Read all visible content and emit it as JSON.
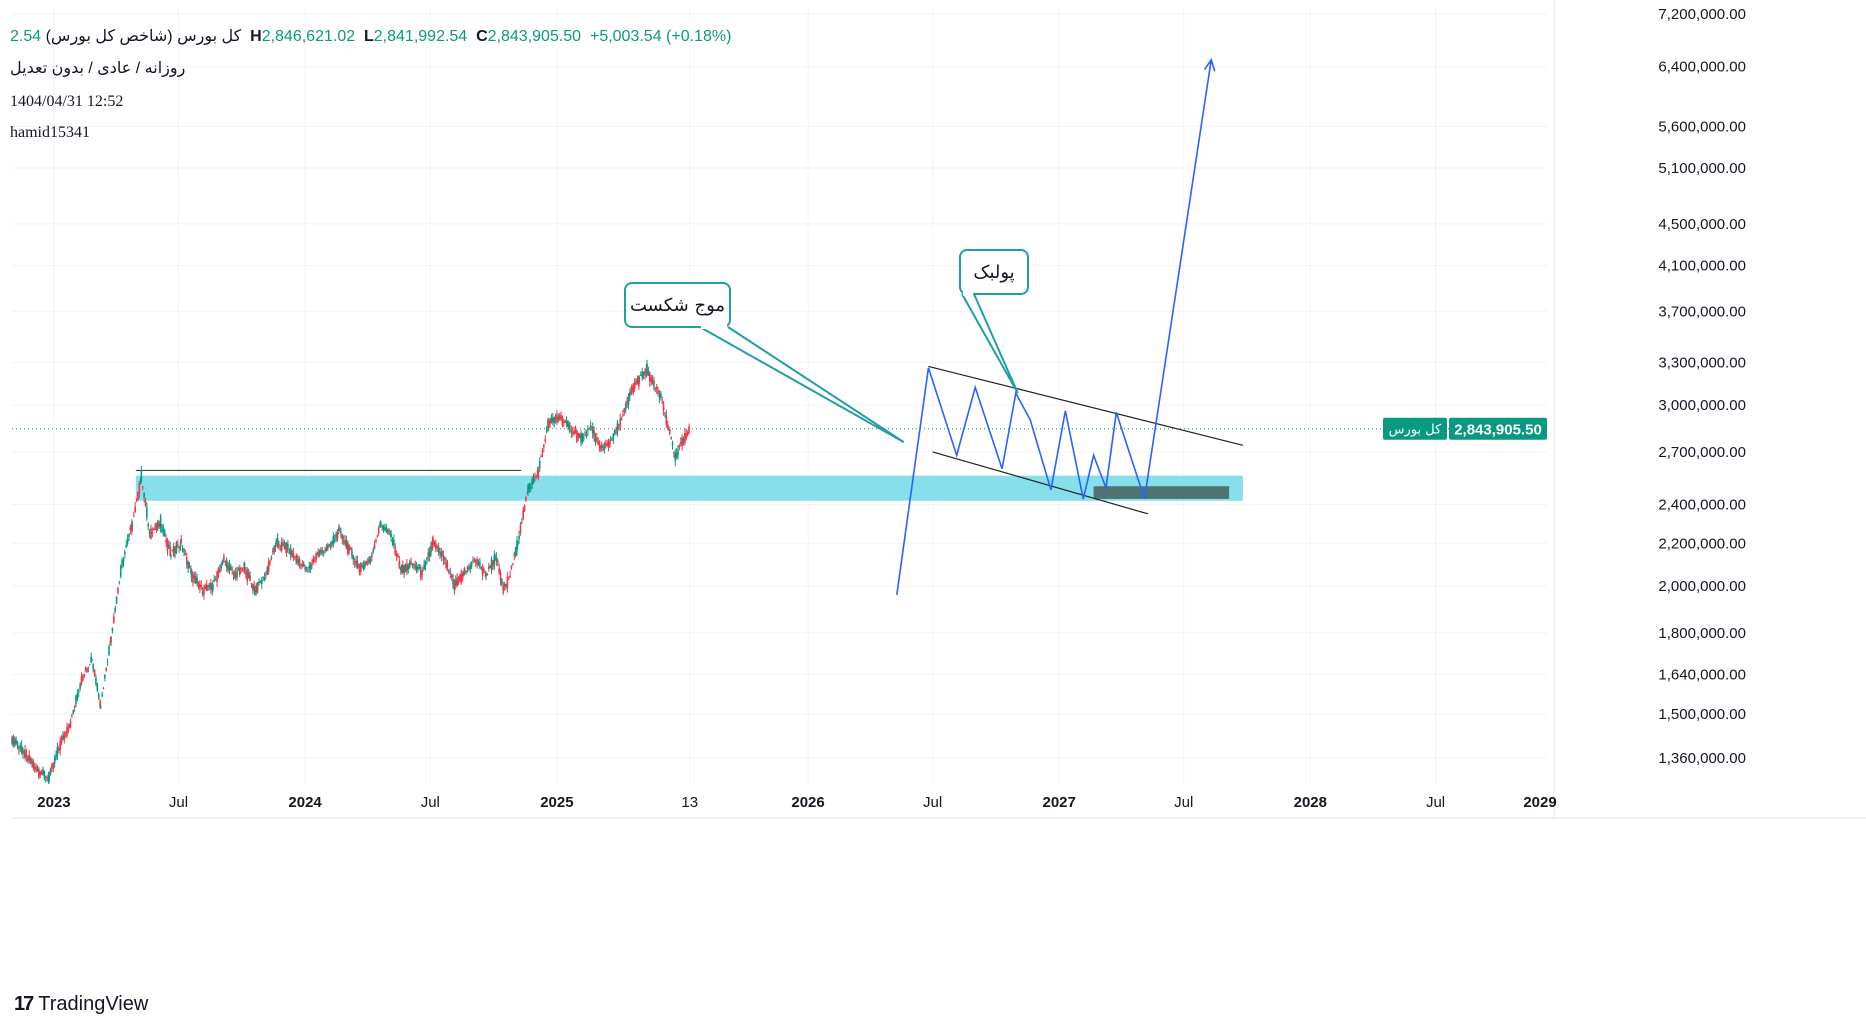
{
  "header": {
    "symbol": "کل بورس (شاخص کل بورس)",
    "open_partial": "2.54",
    "high_label": "H",
    "high": "2,846,621.02",
    "low_label": "L",
    "low": "2,841,992.54",
    "close_label": "C",
    "close": "2,843,905.50",
    "change": "+5,003.54 (+0.18%)",
    "interval": "روزانه / عادی / بدون تعدیل",
    "datetime": "1404/04/31 12:52",
    "author": "hamid15341"
  },
  "brand": {
    "name": "TradingView"
  },
  "price_tag": {
    "label": "کل بورس",
    "value": "2,843,905.50",
    "price": 2843905.5,
    "color": "#089981"
  },
  "annotations": {
    "callout_breakout": "موج شکست",
    "callout_pullback": "پولبک"
  },
  "colors": {
    "up": "#089981",
    "down": "#f23645",
    "projection": "#2962ff",
    "zone": "#7fdde9",
    "callout_border": "#1f9ea7",
    "target_box": "#4f7373"
  },
  "chart_data": {
    "type": "line",
    "scale": "log",
    "ylim": [
      1280000,
      7300000
    ],
    "xlim": [
      "2022-11-01",
      "2028-12-10"
    ],
    "y_ticks": [
      {
        "value": 7200000,
        "label": "7,200,000.00"
      },
      {
        "value": 6400000,
        "label": "6,400,000.00"
      },
      {
        "value": 5600000,
        "label": "5,600,000.00"
      },
      {
        "value": 5100000,
        "label": "5,100,000.00"
      },
      {
        "value": 4500000,
        "label": "4,500,000.00"
      },
      {
        "value": 4100000,
        "label": "4,100,000.00"
      },
      {
        "value": 3700000,
        "label": "3,700,000.00"
      },
      {
        "value": 3300000,
        "label": "3,300,000.00"
      },
      {
        "value": 3000000,
        "label": "3,000,000.00"
      },
      {
        "value": 2700000,
        "label": "2,700,000.00"
      },
      {
        "value": 2400000,
        "label": "2,400,000.00"
      },
      {
        "value": 2200000,
        "label": "2,200,000.00"
      },
      {
        "value": 2000000,
        "label": "2,000,000.00"
      },
      {
        "value": 1800000,
        "label": "1,800,000.00"
      },
      {
        "value": 1640000,
        "label": "1,640,000.00"
      },
      {
        "value": 1500000,
        "label": "1,500,000.00"
      },
      {
        "value": 1360000,
        "label": "1,360,000.00"
      }
    ],
    "x_ticks": [
      {
        "date": "2023-01-01",
        "label": "2023",
        "bold": true
      },
      {
        "date": "2023-07-01",
        "label": "Jul",
        "bold": false
      },
      {
        "date": "2024-01-01",
        "label": "2024",
        "bold": true
      },
      {
        "date": "2024-07-01",
        "label": "Jul",
        "bold": false
      },
      {
        "date": "2025-01-01",
        "label": "2025",
        "bold": true
      },
      {
        "date": "2025-07-13",
        "label": "13",
        "bold": false
      },
      {
        "date": "2026-01-01",
        "label": "2026",
        "bold": true
      },
      {
        "date": "2026-07-01",
        "label": "Jul",
        "bold": false
      },
      {
        "date": "2027-01-01",
        "label": "2027",
        "bold": true
      },
      {
        "date": "2027-07-01",
        "label": "Jul",
        "bold": false
      },
      {
        "date": "2028-01-01",
        "label": "2028",
        "bold": true
      },
      {
        "date": "2028-07-01",
        "label": "Jul",
        "bold": false
      },
      {
        "date": "2029-01-01",
        "label": "2029",
        "bold": true
      }
    ],
    "price_series": [
      [
        "2022-11-01",
        1420000
      ],
      [
        "2022-11-20",
        1370000
      ],
      [
        "2022-12-10",
        1320000
      ],
      [
        "2022-12-25",
        1300000
      ],
      [
        "2023-01-10",
        1400000
      ],
      [
        "2023-01-25",
        1470000
      ],
      [
        "2023-02-10",
        1620000
      ],
      [
        "2023-02-25",
        1700000
      ],
      [
        "2023-03-10",
        1530000
      ],
      [
        "2023-03-25",
        1780000
      ],
      [
        "2023-04-10",
        2100000
      ],
      [
        "2023-04-25",
        2300000
      ],
      [
        "2023-05-08",
        2550000
      ],
      [
        "2023-05-20",
        2250000
      ],
      [
        "2023-06-05",
        2300000
      ],
      [
        "2023-06-20",
        2150000
      ],
      [
        "2023-07-05",
        2200000
      ],
      [
        "2023-07-20",
        2050000
      ],
      [
        "2023-08-05",
        1980000
      ],
      [
        "2023-08-20",
        2000000
      ],
      [
        "2023-09-05",
        2120000
      ],
      [
        "2023-09-20",
        2050000
      ],
      [
        "2023-10-05",
        2080000
      ],
      [
        "2023-10-20",
        1980000
      ],
      [
        "2023-11-05",
        2050000
      ],
      [
        "2023-11-20",
        2200000
      ],
      [
        "2023-12-05",
        2180000
      ],
      [
        "2023-12-20",
        2120000
      ],
      [
        "2024-01-05",
        2070000
      ],
      [
        "2024-01-20",
        2150000
      ],
      [
        "2024-02-05",
        2180000
      ],
      [
        "2024-02-20",
        2260000
      ],
      [
        "2024-03-05",
        2170000
      ],
      [
        "2024-03-20",
        2080000
      ],
      [
        "2024-04-05",
        2120000
      ],
      [
        "2024-04-20",
        2300000
      ],
      [
        "2024-05-05",
        2240000
      ],
      [
        "2024-05-20",
        2070000
      ],
      [
        "2024-06-05",
        2100000
      ],
      [
        "2024-06-20",
        2060000
      ],
      [
        "2024-07-05",
        2200000
      ],
      [
        "2024-07-20",
        2130000
      ],
      [
        "2024-08-05",
        2000000
      ],
      [
        "2024-08-20",
        2060000
      ],
      [
        "2024-09-05",
        2120000
      ],
      [
        "2024-09-20",
        2050000
      ],
      [
        "2024-10-05",
        2130000
      ],
      [
        "2024-10-15",
        1980000
      ],
      [
        "2024-10-25",
        2050000
      ],
      [
        "2024-11-05",
        2200000
      ],
      [
        "2024-11-20",
        2480000
      ],
      [
        "2024-12-05",
        2580000
      ],
      [
        "2024-12-20",
        2880000
      ],
      [
        "2025-01-05",
        2920000
      ],
      [
        "2025-01-20",
        2850000
      ],
      [
        "2025-02-05",
        2780000
      ],
      [
        "2025-02-20",
        2850000
      ],
      [
        "2025-03-05",
        2720000
      ],
      [
        "2025-03-20",
        2760000
      ],
      [
        "2025-04-05",
        2900000
      ],
      [
        "2025-04-20",
        3100000
      ],
      [
        "2025-05-01",
        3180000
      ],
      [
        "2025-05-12",
        3240000
      ],
      [
        "2025-05-22",
        3130000
      ],
      [
        "2025-06-01",
        3050000
      ],
      [
        "2025-06-12",
        2850000
      ],
      [
        "2025-06-22",
        2660000
      ],
      [
        "2025-07-02",
        2760000
      ],
      [
        "2025-07-13",
        2843905
      ]
    ],
    "projection_path": [
      [
        "2026-05-10",
        1960000
      ],
      [
        "2026-06-25",
        3260000
      ],
      [
        "2026-08-05",
        2680000
      ],
      [
        "2026-09-01",
        3120000
      ],
      [
        "2026-10-10",
        2600000
      ],
      [
        "2026-10-30",
        3080000
      ],
      [
        "2026-11-20",
        2900000
      ],
      [
        "2026-12-20",
        2480000
      ],
      [
        "2027-01-10",
        2960000
      ],
      [
        "2027-02-05",
        2430000
      ],
      [
        "2027-02-20",
        2680000
      ],
      [
        "2027-03-10",
        2490000
      ],
      [
        "2027-03-25",
        2950000
      ],
      [
        "2027-05-05",
        2430000
      ],
      [
        "2027-08-10",
        6500000
      ]
    ],
    "channel_upper": [
      [
        "2026-06-25",
        3270000
      ],
      [
        "2027-09-25",
        2740000
      ]
    ],
    "channel_lower": [
      [
        "2026-07-01",
        2700000
      ],
      [
        "2027-05-10",
        2350000
      ]
    ],
    "resistance_line": {
      "from": "2023-04-30",
      "to": "2024-11-10",
      "value": 2590000
    },
    "support_zone": {
      "from": "2023-04-30",
      "to": "2027-09-25",
      "top": 2560000,
      "bottom": 2420000
    },
    "target_box": {
      "from": "2027-02-20",
      "to": "2027-09-05",
      "top": 2500000,
      "bottom": 2430000
    },
    "current_price_line": 2843905.5
  }
}
